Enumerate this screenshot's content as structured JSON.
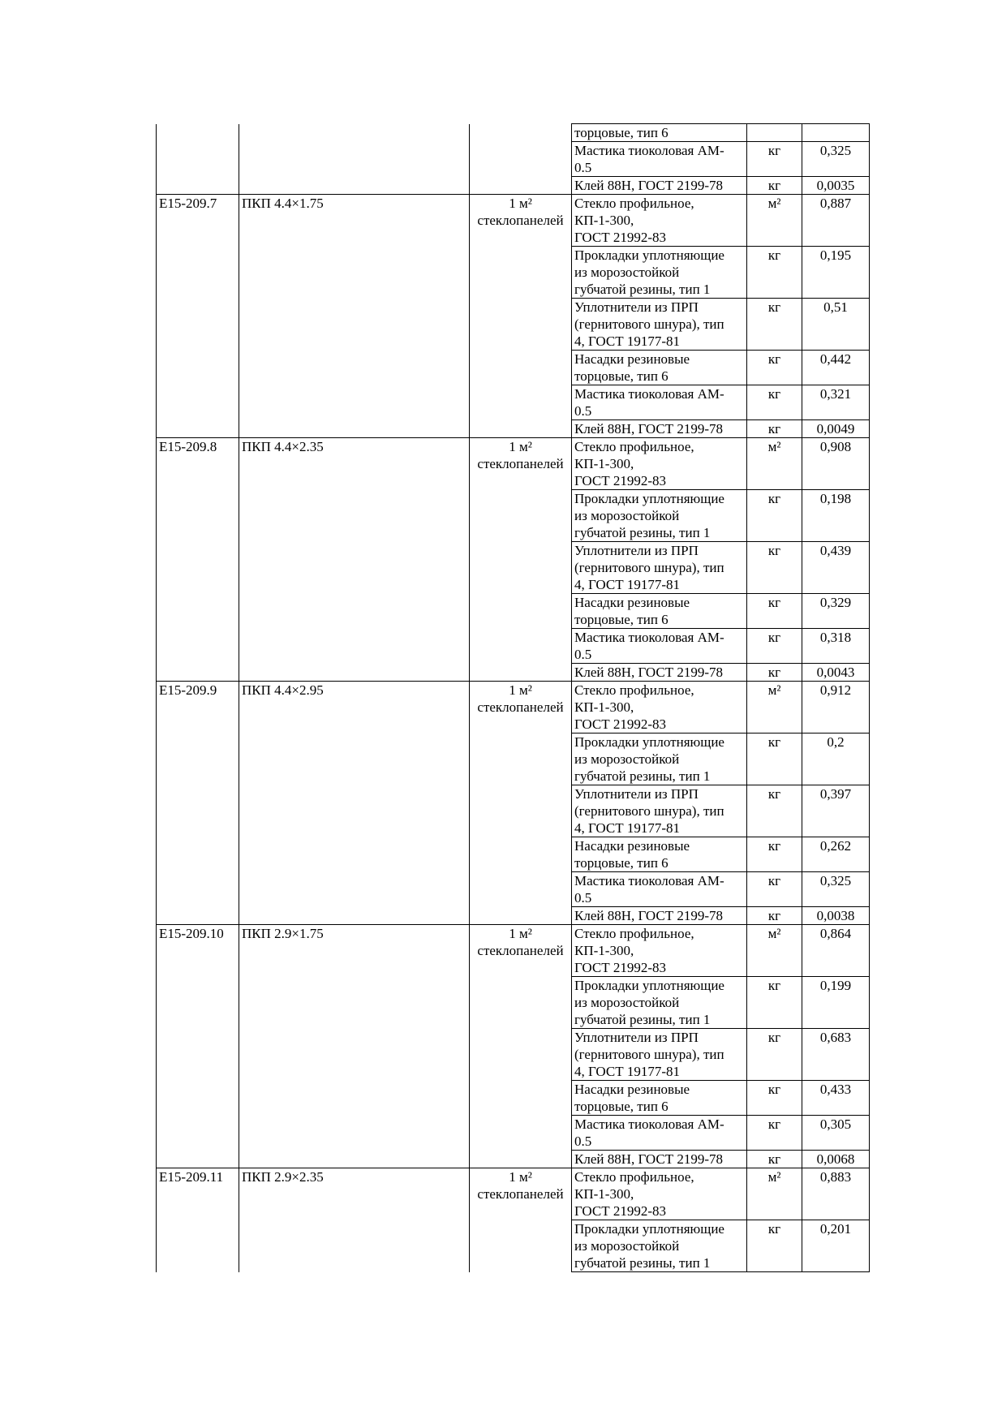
{
  "measure_unit": "1 м²\nстеклопанелей",
  "continuation": {
    "materials": [
      {
        "name": "торцовые, тип 6",
        "unit": "",
        "value": ""
      },
      {
        "name": "Мастика тиоколовая АМ-\n0.5",
        "unit": "кг",
        "value": "0,325"
      },
      {
        "name": "Клей 88Н, ГОСТ 2199-78",
        "unit": "кг",
        "value": "0,0035"
      }
    ]
  },
  "groups": [
    {
      "code": "Е15-209.7",
      "name": "ПКП  4.4×1.75",
      "materials": [
        {
          "name": "Стекло профильное,\nКП-1-300,\nГОСТ 21992-83",
          "unit": "м²",
          "value": "0,887"
        },
        {
          "name": "Прокладки уплотняющие\nиз морозостойкой\nгубчатой резины, тип 1",
          "unit": "кг",
          "value": "0,195"
        },
        {
          "name": "Уплотнители из ПРП\n(гернитового шнура), тип\n4, ГОСТ 19177-81",
          "unit": "кг",
          "value": "0,51"
        },
        {
          "name": "Насадки резиновые\nторцовые, тип 6",
          "unit": "кг",
          "value": "0,442"
        },
        {
          "name": "Мастика тиоколовая АМ-\n0.5",
          "unit": "кг",
          "value": "0,321"
        },
        {
          "name": "Клей 88Н, ГОСТ 2199-78",
          "unit": "кг",
          "value": "0,0049"
        }
      ]
    },
    {
      "code": "Е15-209.8",
      "name": "ПКП  4.4×2.35",
      "materials": [
        {
          "name": "Стекло профильное,\nКП-1-300,\nГОСТ 21992-83",
          "unit": "м²",
          "value": "0,908"
        },
        {
          "name": "Прокладки уплотняющие\nиз морозостойкой\nгубчатой резины, тип 1",
          "unit": "кг",
          "value": "0,198"
        },
        {
          "name": "Уплотнители из ПРП\n(гернитового шнура), тип\n4, ГОСТ 19177-81",
          "unit": "кг",
          "value": "0,439"
        },
        {
          "name": "Насадки резиновые\nторцовые, тип 6",
          "unit": "кг",
          "value": "0,329"
        },
        {
          "name": "Мастика тиоколовая АМ-\n0.5",
          "unit": "кг",
          "value": "0,318"
        },
        {
          "name": "Клей 88Н, ГОСТ 2199-78",
          "unit": "кг",
          "value": "0,0043"
        }
      ]
    },
    {
      "code": "Е15-209.9",
      "name": "ПКП  4.4×2.95",
      "materials": [
        {
          "name": "Стекло профильное,\nКП-1-300,\nГОСТ 21992-83",
          "unit": "м²",
          "value": "0,912"
        },
        {
          "name": "Прокладки уплотняющие\nиз морозостойкой\nгубчатой резины, тип 1",
          "unit": "кг",
          "value": "0,2"
        },
        {
          "name": "Уплотнители из ПРП\n(гернитового шнура), тип\n4, ГОСТ 19177-81",
          "unit": "кг",
          "value": "0,397"
        },
        {
          "name": "Насадки резиновые\nторцовые, тип 6",
          "unit": "кг",
          "value": "0,262"
        },
        {
          "name": "Мастика тиоколовая АМ-\n0.5",
          "unit": "кг",
          "value": "0,325"
        },
        {
          "name": "Клей 88Н, ГОСТ 2199-78",
          "unit": "кг",
          "value": "0,0038"
        }
      ]
    },
    {
      "code": "Е15-209.10",
      "name": "ПКП  2.9×1.75",
      "materials": [
        {
          "name": "Стекло профильное,\nКП-1-300,\nГОСТ 21992-83",
          "unit": "м²",
          "value": "0,864"
        },
        {
          "name": "Прокладки уплотняющие\nиз морозостойкой\nгубчатой резины, тип 1",
          "unit": "кг",
          "value": "0,199"
        },
        {
          "name": "Уплотнители из ПРП\n(гернитового шнура), тип\n4, ГОСТ 19177-81",
          "unit": "кг",
          "value": "0,683"
        },
        {
          "name": "Насадки резиновые\nторцовые, тип 6",
          "unit": "кг",
          "value": "0,433"
        },
        {
          "name": "Мастика тиоколовая АМ-\n0.5",
          "unit": "кг",
          "value": "0,305"
        },
        {
          "name": "Клей 88Н, ГОСТ 2199-78",
          "unit": "кг",
          "value": "0,0068"
        }
      ]
    },
    {
      "code": "Е15-209.11",
      "name": "ПКП 2.9×2.35",
      "materials": [
        {
          "name": "Стекло профильное,\nКП-1-300,\nГОСТ 21992-83",
          "unit": "м²",
          "value": "0,883"
        },
        {
          "name": "Прокладки уплотняющие\nиз морозостойкой\nгубчатой резины, тип 1",
          "unit": "кг",
          "value": "0,201"
        }
      ]
    }
  ]
}
